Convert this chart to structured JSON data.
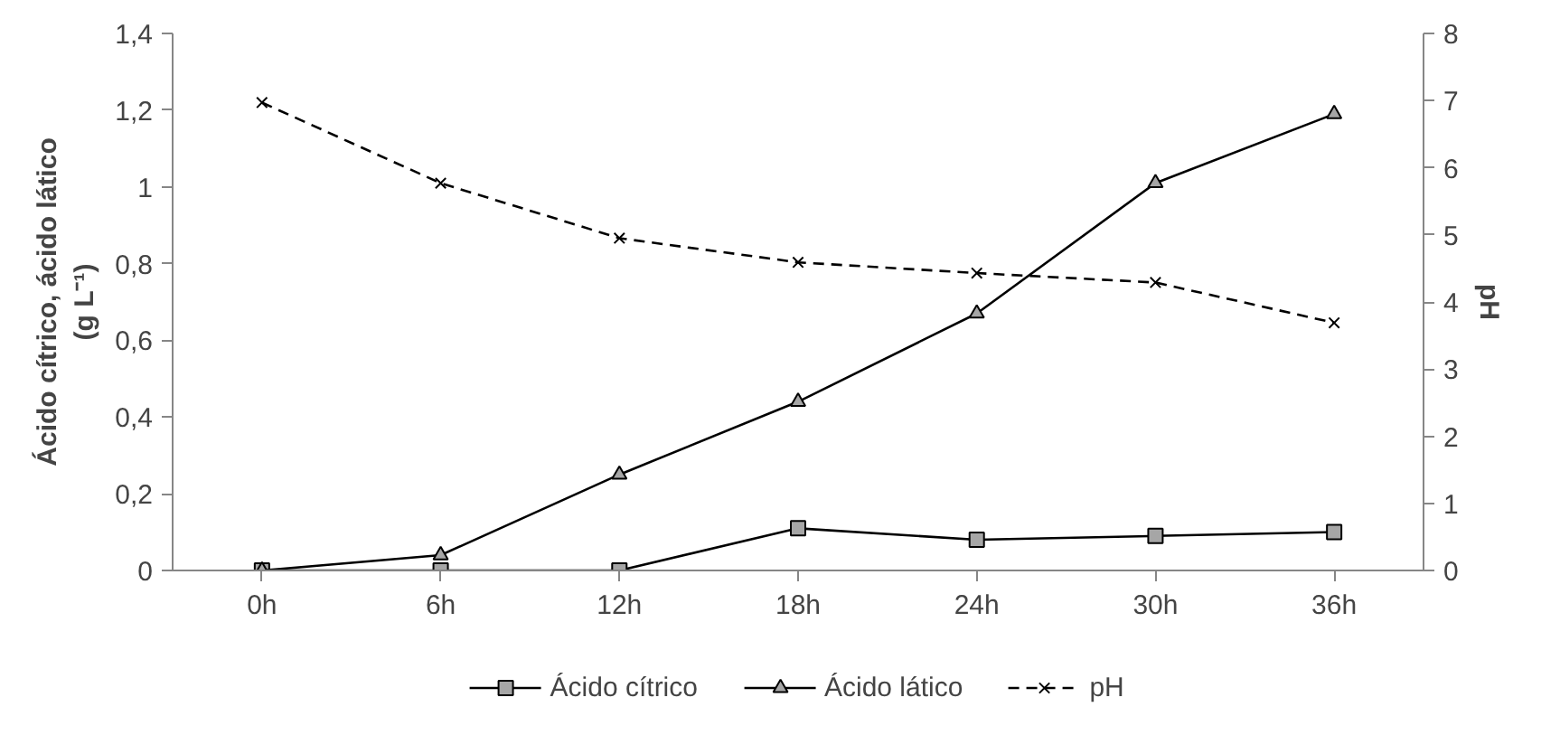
{
  "chart_data": {
    "type": "line",
    "ylabel": "Ácido cítrico, ácido lático\n(g L⁻¹)",
    "y2label": "pH",
    "categories": [
      "0h",
      "6h",
      "12h",
      "18h",
      "24h",
      "30h",
      "36h"
    ],
    "series": [
      {
        "name": "Ácido cítrico",
        "color": "#000000",
        "marker": "square",
        "line_style": "solid",
        "values": [
          0,
          0,
          0,
          0.11,
          0.08,
          0.09,
          0.1
        ]
      },
      {
        "name": "Ácido lático",
        "color": "#000000",
        "marker": "triangle",
        "line_style": "solid",
        "values": [
          0,
          0.04,
          0.25,
          0.44,
          0.67,
          1.01,
          1.19
        ]
      },
      {
        "name": "pH",
        "color": "#000000",
        "marker": "cross",
        "line_style": "dashed",
        "axis": "y2",
        "values": [
          6.97,
          5.77,
          4.95,
          4.59,
          4.43,
          4.29,
          3.69
        ]
      }
    ],
    "ylim": [
      0,
      1.4
    ],
    "yticks": [
      0,
      {
        "value": 0.2,
        "label": "0,2"
      },
      {
        "value": 0.4,
        "label": "0,4"
      },
      {
        "value": 0.6,
        "label": "0,6"
      },
      {
        "value": 0.8,
        "label": "0,8"
      },
      1,
      {
        "value": 1.2,
        "label": "1,2"
      },
      {
        "value": 1.4,
        "label": "1,4"
      }
    ],
    "y2lim": [
      0,
      8
    ],
    "y2ticks": [
      0,
      1,
      2,
      3,
      4,
      5,
      6,
      7,
      8
    ],
    "grid": false,
    "legend": "bottom"
  }
}
